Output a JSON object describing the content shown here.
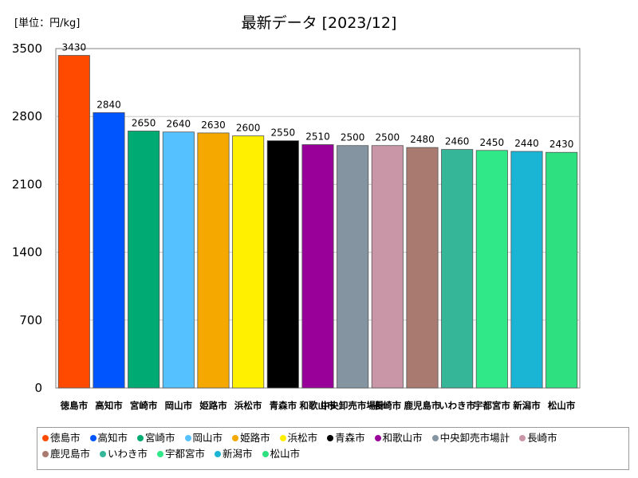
{
  "chart_data": {
    "type": "bar",
    "title": "最新データ [2023/12]",
    "unit_label": "[単位：円/kg]",
    "categories": [
      "徳島市",
      "高知市",
      "宮崎市",
      "岡山市",
      "姫路市",
      "浜松市",
      "青森市",
      "和歌山市",
      "中央卸売市場計",
      "長崎市",
      "鹿児島市",
      "いわき市",
      "宇都宮市",
      "新潟市",
      "松山市"
    ],
    "values": [
      3430,
      2840,
      2650,
      2640,
      2630,
      2600,
      2550,
      2510,
      2500,
      2500,
      2480,
      2460,
      2450,
      2440,
      2430
    ],
    "colors": [
      "#ff4a00",
      "#0055ff",
      "#00aa73",
      "#55c2ff",
      "#f5a800",
      "#fff000",
      "#000000",
      "#990099",
      "#8494a0",
      "#c996a8",
      "#a97a70",
      "#36b698",
      "#30e888",
      "#1ab4d4",
      "#2ee080"
    ],
    "ylim": [
      0,
      3500
    ],
    "yticks": [
      0,
      700,
      1400,
      2100,
      2800,
      3500
    ],
    "grid": true,
    "legend_position": "bottom"
  }
}
